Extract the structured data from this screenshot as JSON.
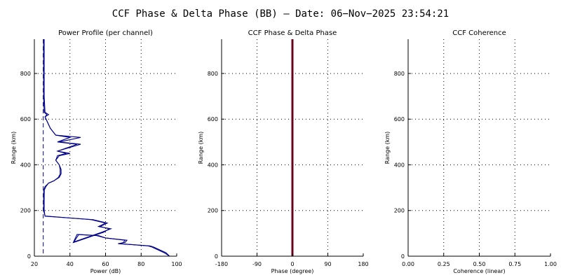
{
  "title": "CCF Phase & Delta Phase (BB) — Date: 06−Nov−2025 23:54:21",
  "colors": {
    "profile": "#00008b",
    "phase": "#800020",
    "phase_dark": "#4b0012",
    "axis": "#000000"
  },
  "chart_data": [
    {
      "type": "line",
      "title": "Power Profile (per channel)",
      "xlabel": "Power (dB)",
      "ylabel": "Range (km)",
      "xlim": [
        20,
        100
      ],
      "ylim": [
        0,
        950
      ],
      "xticks": [
        20,
        40,
        60,
        80,
        100
      ],
      "yticks": [
        0,
        200,
        400,
        600,
        800
      ],
      "grid": true,
      "reference_line": {
        "x": 25,
        "style": "dashed"
      },
      "series": [
        {
          "x": [
            96,
            94,
            87,
            85,
            67,
            71,
            72,
            60,
            56,
            45,
            42,
            59,
            62,
            57,
            61,
            53,
            26,
            25.5,
            25.5,
            25.6,
            26.5,
            28,
            31,
            34,
            35,
            35,
            34,
            32,
            34,
            40,
            33,
            46,
            34,
            46,
            32,
            29,
            26,
            28,
            26,
            25.5,
            25.5,
            25.5,
            25.5
          ],
          "y": [
            0,
            15,
            40,
            45,
            55,
            60,
            70,
            80,
            90,
            95,
            60,
            105,
            120,
            130,
            145,
            160,
            175,
            200,
            250,
            290,
            305,
            320,
            330,
            345,
            360,
            380,
            400,
            420,
            440,
            450,
            460,
            490,
            500,
            520,
            530,
            560,
            610,
            620,
            630,
            700,
            800,
            900,
            950
          ]
        },
        {
          "x": [
            96,
            93,
            86,
            84,
            68,
            70,
            71,
            60,
            55,
            44,
            42,
            58,
            63,
            56,
            60,
            52,
            26,
            25.2,
            25.2,
            25.3,
            26,
            28,
            31,
            33.5,
            34.5,
            34.5,
            34,
            32,
            33,
            38,
            33,
            44,
            33,
            40,
            32,
            29,
            26,
            27,
            25.5,
            25.2,
            25.2,
            25.2,
            25.2
          ],
          "y": [
            0,
            15,
            40,
            45,
            55,
            60,
            70,
            80,
            90,
            95,
            62,
            105,
            120,
            130,
            145,
            160,
            176,
            200,
            250,
            290,
            305,
            320,
            330,
            345,
            360,
            380,
            400,
            420,
            440,
            450,
            460,
            490,
            500,
            520,
            530,
            560,
            610,
            620,
            630,
            700,
            800,
            900,
            950
          ]
        }
      ]
    },
    {
      "type": "line",
      "title": "CCF Phase & Delta Phase",
      "xlabel": "Phase (degree)",
      "ylabel": "Range (km)",
      "xlim": [
        -180,
        180
      ],
      "ylim": [
        0,
        950
      ],
      "xticks": [
        -180,
        -90,
        0,
        90,
        180
      ],
      "yticks": [
        0,
        200,
        400,
        600,
        800
      ],
      "grid": true,
      "series": [
        {
          "x": [
            0,
            0
          ],
          "y": [
            0,
            950
          ]
        }
      ]
    },
    {
      "type": "line",
      "title": "CCF Coherence",
      "xlabel": "Coherence (linear)",
      "ylabel": "Range (km)",
      "xlim": [
        0,
        1
      ],
      "ylim": [
        0,
        950
      ],
      "xticks": [
        "0.00",
        "0.25",
        "0.50",
        "0.75",
        "1.00"
      ],
      "yticks": [
        0,
        200,
        400,
        600,
        800
      ],
      "grid": true,
      "series": []
    }
  ]
}
